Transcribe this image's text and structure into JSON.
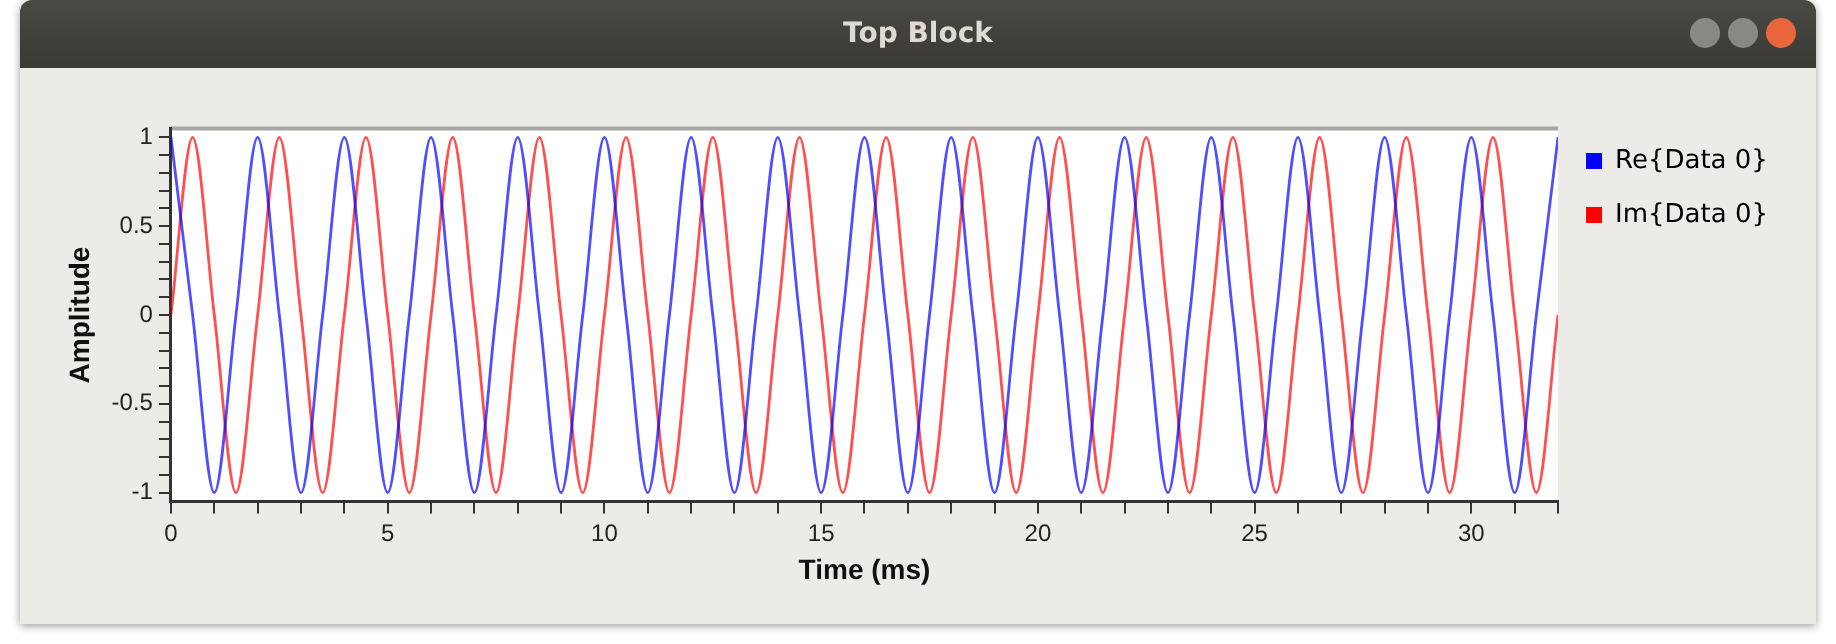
{
  "chart_data": {
    "type": "line",
    "title": "Top Block",
    "xlabel": "Time (ms)",
    "ylabel": "Amplitude",
    "x": [
      0,
      0.5,
      1,
      1.5,
      2,
      2.5,
      3,
      3.5,
      4,
      4.5,
      5,
      5.5,
      6,
      6.5,
      7,
      7.5,
      8,
      8.5,
      9,
      9.5,
      10,
      10.5,
      11,
      11.5,
      12,
      12.5,
      13,
      13.5,
      14,
      14.5,
      15,
      15.5,
      16,
      16.5,
      17,
      17.5,
      18,
      18.5,
      19,
      19.5,
      20,
      20.5,
      21,
      21.5,
      22,
      22.5,
      23,
      23.5,
      24,
      24.5,
      25,
      25.5,
      26,
      26.5,
      27,
      27.5,
      28,
      28.5,
      29,
      29.5,
      30,
      30.5,
      31,
      31.5,
      32
    ],
    "series": [
      {
        "name": "Re{Data 0}",
        "color": "#0000ff",
        "values": [
          1,
          0,
          -1,
          0,
          1,
          0,
          -1,
          0,
          1,
          0,
          -1,
          0,
          1,
          0,
          -1,
          0,
          1,
          0,
          -1,
          0,
          1,
          0,
          -1,
          0,
          1,
          0,
          -1,
          0,
          1,
          0,
          -1,
          0,
          1,
          0,
          -1,
          0,
          1,
          0,
          -1,
          0,
          1,
          0,
          -1,
          0,
          1,
          0,
          -1,
          0,
          1,
          0,
          -1,
          0,
          1,
          0,
          -1,
          0,
          1,
          0,
          -1,
          0,
          1,
          0,
          -1,
          0,
          1
        ]
      },
      {
        "name": "Im{Data 0}",
        "color": "#ff0000",
        "values": [
          0,
          1,
          0,
          -1,
          0,
          1,
          0,
          -1,
          0,
          1,
          0,
          -1,
          0,
          1,
          0,
          -1,
          0,
          1,
          0,
          -1,
          0,
          1,
          0,
          -1,
          0,
          1,
          0,
          -1,
          0,
          1,
          0,
          -1,
          0,
          1,
          0,
          -1,
          0,
          1,
          0,
          -1,
          0,
          1,
          0,
          -1,
          0,
          1,
          0,
          -1,
          0,
          1,
          0,
          -1,
          0,
          1,
          0,
          -1,
          0,
          1,
          0,
          -1,
          0,
          1,
          0,
          -1,
          0
        ]
      }
    ],
    "xlim": [
      0,
      32
    ],
    "xticks": [
      0,
      {
        "value": 1,
        "label": null
      },
      {
        "value": 2,
        "label": null
      },
      {
        "value": 3,
        "label": null
      },
      {
        "value": 4,
        "label": null
      },
      5,
      {
        "value": 6,
        "label": null
      },
      {
        "value": 7,
        "label": null
      },
      {
        "value": 8,
        "label": null
      },
      {
        "value": 9,
        "label": null
      },
      10,
      {
        "value": 11,
        "label": null
      },
      {
        "value": 12,
        "label": null
      },
      {
        "value": 13,
        "label": null
      },
      {
        "value": 14,
        "label": null
      },
      15,
      {
        "value": 16,
        "label": null
      },
      {
        "value": 17,
        "label": null
      },
      {
        "value": 18,
        "label": null
      },
      {
        "value": 19,
        "label": null
      },
      20,
      {
        "value": 21,
        "label": null
      },
      {
        "value": 22,
        "label": null
      },
      {
        "value": 23,
        "label": null
      },
      {
        "value": 24,
        "label": null
      },
      25,
      {
        "value": 26,
        "label": null
      },
      {
        "value": 27,
        "label": null
      },
      {
        "value": 28,
        "label": null
      },
      {
        "value": 29,
        "label": null
      },
      30,
      {
        "value": 31,
        "label": null
      },
      {
        "value": 32,
        "label": null
      }
    ],
    "ylim": [
      -1.05,
      1.05
    ],
    "yticks": [
      -1,
      {
        "value": -0.9,
        "label": null
      },
      {
        "value": -0.8,
        "label": null
      },
      {
        "value": -0.7,
        "label": null
      },
      {
        "value": -0.6,
        "label": null
      },
      -0.5,
      {
        "value": -0.4,
        "label": null
      },
      {
        "value": -0.3,
        "label": null
      },
      {
        "value": -0.2,
        "label": null
      },
      {
        "value": -0.1,
        "label": null
      },
      0,
      {
        "value": 0.1,
        "label": null
      },
      {
        "value": 0.2,
        "label": null
      },
      {
        "value": 0.3,
        "label": null
      },
      {
        "value": 0.4,
        "label": null
      },
      0.5,
      {
        "value": 0.6,
        "label": null
      },
      {
        "value": 0.7,
        "label": null
      },
      {
        "value": 0.8,
        "label": null
      },
      {
        "value": 0.9,
        "label": null
      },
      1
    ],
    "grid": false,
    "legend": "right",
    "marker": "none",
    "line_style": "solid"
  }
}
